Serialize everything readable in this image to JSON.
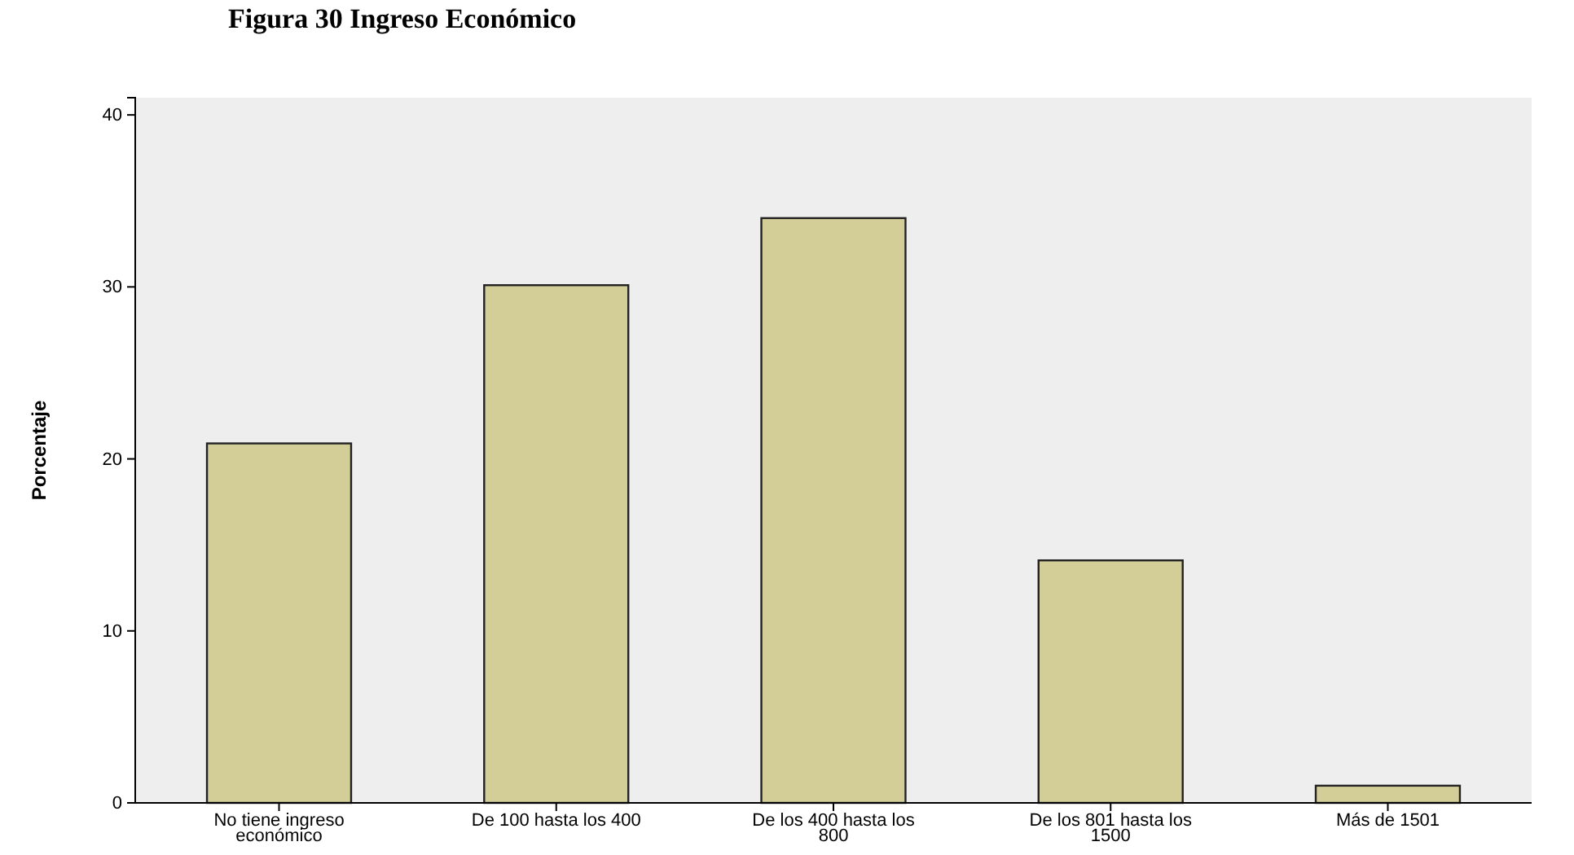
{
  "chart_data": {
    "type": "bar",
    "title": "Figura  30 Ingreso Económico",
    "ylabel": "Porcentaje",
    "categories": [
      "No tiene ingreso económico",
      "De 100 hasta los 400",
      "De los 400 hasta los 800",
      "De los 801 hasta los 1500",
      "Más de 1501"
    ],
    "values": [
      20.9,
      30.1,
      34.0,
      14.1,
      1.0
    ],
    "color": "#d3cd98",
    "ylim": [
      0,
      41
    ],
    "yticks": [
      0,
      10,
      20,
      30,
      40
    ],
    "grid": false
  }
}
